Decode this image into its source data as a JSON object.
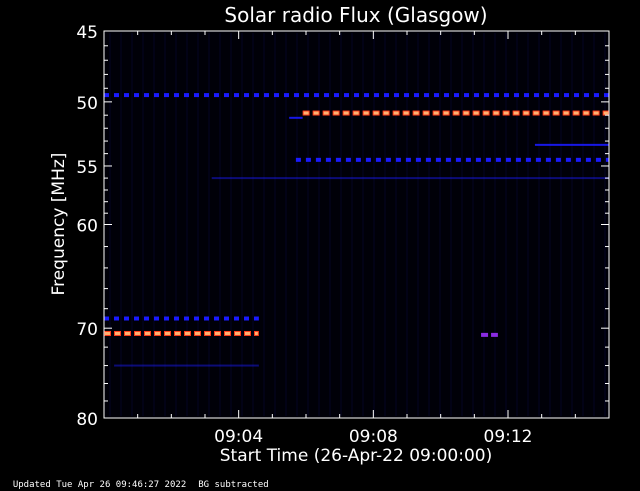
{
  "chart_data": {
    "type": "heatmap",
    "title": "Solar radio Flux (Glasgow)",
    "xlabel": "Start Time (26-Apr-22 09:00:00)",
    "ylabel": "Frequency [MHz]",
    "x_range_minutes": [
      0,
      15
    ],
    "x_ticks": [
      {
        "minute": 4,
        "label": "09:04"
      },
      {
        "minute": 8,
        "label": "09:08"
      },
      {
        "minute": 12,
        "label": "09:12"
      }
    ],
    "y_scale": "log",
    "ylim": [
      80,
      45
    ],
    "y_ticks": [
      {
        "value": 45,
        "label": "45"
      },
      {
        "value": 50,
        "label": "50"
      },
      {
        "value": 55,
        "label": "55"
      },
      {
        "value": 60,
        "label": "60"
      },
      {
        "value": 70,
        "label": "70"
      },
      {
        "value": 80,
        "label": "80"
      }
    ],
    "colors": {
      "background": "#000008",
      "weak": "#1a1aff",
      "medium": "#8a2be2",
      "strong": "#ff3b1a",
      "peak": "#ffb070"
    },
    "emission_bands": [
      {
        "freq": 49.5,
        "start_min": 0.0,
        "end_min": 15.0,
        "intensity": "weak",
        "style": "dash"
      },
      {
        "freq": 50.8,
        "start_min": 5.9,
        "end_min": 15.0,
        "intensity": "strong",
        "style": "dash"
      },
      {
        "freq": 51.2,
        "start_min": 5.5,
        "end_min": 5.9,
        "intensity": "weak",
        "style": "solid"
      },
      {
        "freq": 53.3,
        "start_min": 12.8,
        "end_min": 15.0,
        "intensity": "weak",
        "style": "solid"
      },
      {
        "freq": 54.5,
        "start_min": 5.7,
        "end_min": 15.0,
        "intensity": "weak",
        "style": "dash"
      },
      {
        "freq": 56.0,
        "start_min": 3.2,
        "end_min": 15.0,
        "intensity": "weak",
        "style": "faint"
      },
      {
        "freq": 69.0,
        "start_min": 0.0,
        "end_min": 4.6,
        "intensity": "weak",
        "style": "dash"
      },
      {
        "freq": 70.5,
        "start_min": 0.0,
        "end_min": 4.6,
        "intensity": "strong",
        "style": "dash"
      },
      {
        "freq": 70.7,
        "start_min": 11.2,
        "end_min": 11.7,
        "intensity": "medium",
        "style": "dash"
      },
      {
        "freq": 74.0,
        "start_min": 0.3,
        "end_min": 4.6,
        "intensity": "weak",
        "style": "faint"
      }
    ]
  },
  "footer": {
    "updated": "Updated Tue Apr 26 09:46:27 2022",
    "note": "BG subtracted"
  }
}
